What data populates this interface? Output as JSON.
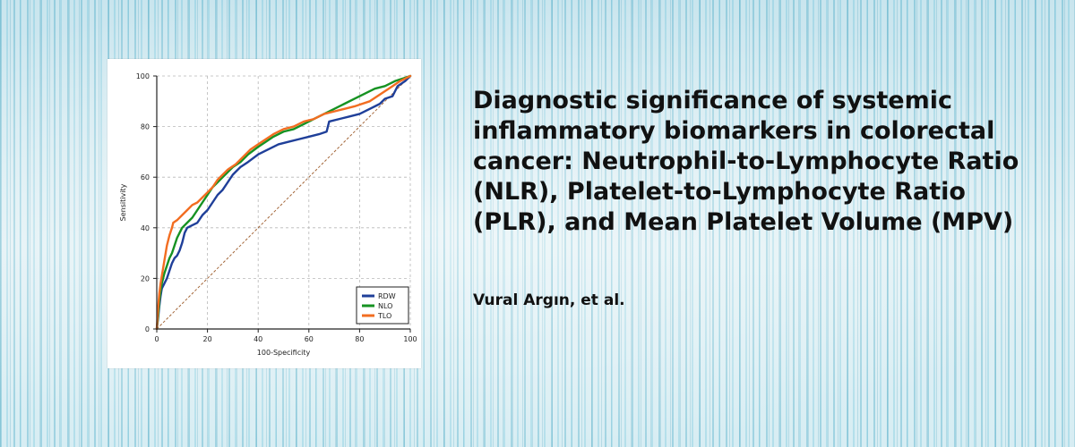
{
  "article": {
    "title": "Diagnostic significance of systemic inflammatory biomarkers in colorectal cancer: Neutrophil-to-Lymphocyte Ratio (NLR), Platelet-to-Lymphocyte Ratio (PLR), and Mean Platelet Volume (MPV)",
    "authors": "Vural Argın, et al."
  },
  "chart_data": {
    "type": "line",
    "title": "",
    "xlabel": "100-Specificity",
    "ylabel": "Sensitivity",
    "xlim": [
      0,
      100
    ],
    "ylim": [
      0,
      100
    ],
    "x_ticks": [
      "0",
      "20",
      "40",
      "60",
      "80",
      "100"
    ],
    "y_ticks": [
      "0",
      "20",
      "40",
      "60",
      "80",
      "100"
    ],
    "grid": true,
    "legend_position": "bottom-right",
    "series": [
      {
        "name": "RDW",
        "color": "#1f3f99",
        "points": [
          [
            0,
            0
          ],
          [
            0.5,
            4
          ],
          [
            1,
            9
          ],
          [
            1.5,
            13
          ],
          [
            2,
            16
          ],
          [
            3,
            18
          ],
          [
            4,
            20
          ],
          [
            5,
            23
          ],
          [
            6,
            26
          ],
          [
            7,
            28
          ],
          [
            8,
            29
          ],
          [
            9,
            31
          ],
          [
            10,
            34
          ],
          [
            11,
            38
          ],
          [
            12,
            40
          ],
          [
            14,
            41
          ],
          [
            16,
            42
          ],
          [
            18,
            45
          ],
          [
            20,
            47
          ],
          [
            22,
            50
          ],
          [
            24,
            53
          ],
          [
            26,
            55
          ],
          [
            28,
            58
          ],
          [
            30,
            61
          ],
          [
            33,
            64
          ],
          [
            36,
            66
          ],
          [
            40,
            69
          ],
          [
            44,
            71
          ],
          [
            48,
            73
          ],
          [
            52,
            74
          ],
          [
            56,
            75
          ],
          [
            60,
            76
          ],
          [
            64,
            77
          ],
          [
            67,
            78
          ],
          [
            68,
            82
          ],
          [
            72,
            83
          ],
          [
            76,
            84
          ],
          [
            80,
            85
          ],
          [
            84,
            87
          ],
          [
            88,
            89
          ],
          [
            90,
            91
          ],
          [
            93,
            92
          ],
          [
            95,
            96
          ],
          [
            98,
            98
          ],
          [
            100,
            100
          ]
        ]
      },
      {
        "name": "NLO",
        "color": "#169222",
        "points": [
          [
            0,
            0
          ],
          [
            0.5,
            5
          ],
          [
            1,
            11
          ],
          [
            1.5,
            15
          ],
          [
            2,
            18
          ],
          [
            3,
            22
          ],
          [
            4,
            25
          ],
          [
            5,
            28
          ],
          [
            6,
            30
          ],
          [
            7,
            33
          ],
          [
            8,
            36
          ],
          [
            9,
            38
          ],
          [
            10,
            40
          ],
          [
            12,
            42
          ],
          [
            14,
            44
          ],
          [
            16,
            47
          ],
          [
            18,
            50
          ],
          [
            20,
            53
          ],
          [
            22,
            56
          ],
          [
            24,
            58
          ],
          [
            26,
            60
          ],
          [
            28,
            62
          ],
          [
            30,
            64
          ],
          [
            33,
            66
          ],
          [
            36,
            69
          ],
          [
            40,
            72
          ],
          [
            43,
            74
          ],
          [
            46,
            76
          ],
          [
            50,
            78
          ],
          [
            54,
            79
          ],
          [
            58,
            81
          ],
          [
            62,
            83
          ],
          [
            66,
            85
          ],
          [
            70,
            87
          ],
          [
            74,
            89
          ],
          [
            78,
            91
          ],
          [
            82,
            93
          ],
          [
            86,
            95
          ],
          [
            90,
            96
          ],
          [
            94,
            98
          ],
          [
            97,
            99
          ],
          [
            100,
            100
          ]
        ]
      },
      {
        "name": "TLO",
        "color": "#f26d21",
        "points": [
          [
            0,
            0
          ],
          [
            0.5,
            8
          ],
          [
            1,
            14
          ],
          [
            1.5,
            18
          ],
          [
            2,
            21
          ],
          [
            2.5,
            24
          ],
          [
            3,
            27
          ],
          [
            4,
            33
          ],
          [
            5,
            37
          ],
          [
            6,
            40
          ],
          [
            6.5,
            42
          ],
          [
            8,
            43
          ],
          [
            10,
            45
          ],
          [
            12,
            47
          ],
          [
            14,
            49
          ],
          [
            16,
            50
          ],
          [
            18,
            52
          ],
          [
            20,
            54
          ],
          [
            22,
            56
          ],
          [
            24,
            59
          ],
          [
            26,
            61
          ],
          [
            28,
            63
          ],
          [
            31,
            65
          ],
          [
            34,
            68
          ],
          [
            37,
            71
          ],
          [
            40,
            73
          ],
          [
            43,
            75
          ],
          [
            46,
            77
          ],
          [
            50,
            79
          ],
          [
            54,
            80
          ],
          [
            58,
            82
          ],
          [
            62,
            83
          ],
          [
            66,
            85
          ],
          [
            70,
            86
          ],
          [
            74,
            87
          ],
          [
            78,
            88
          ],
          [
            81,
            89
          ],
          [
            84,
            90
          ],
          [
            87,
            92
          ],
          [
            90,
            94
          ],
          [
            93,
            96
          ],
          [
            96,
            98
          ],
          [
            100,
            100
          ]
        ]
      }
    ],
    "reference_line": {
      "color": "#a4673a",
      "points": [
        [
          0,
          0
        ],
        [
          100,
          100
        ]
      ]
    }
  }
}
